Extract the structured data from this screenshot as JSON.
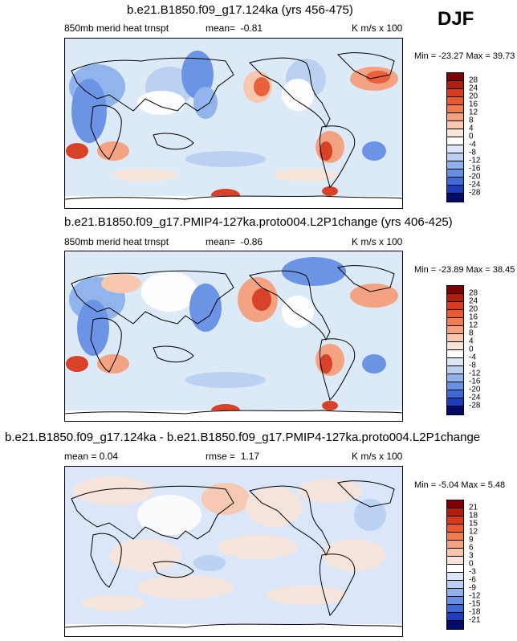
{
  "season": "DJF",
  "panels": [
    {
      "title": "b.e21.B1850.f09_g17.124ka (yrs 456-475)",
      "left_label": "850mb merid heat trnspt",
      "stat_label": "mean=",
      "stat_value": "-0.81",
      "units": "K m/s x 100",
      "minmax": "Min = -23.27 Max =  39.73",
      "levels": [
        "28",
        "24",
        "20",
        "16",
        "12",
        "8",
        "4",
        "0",
        "-4",
        "-8",
        "-12",
        "-16",
        "-20",
        "-24",
        "-28"
      ]
    },
    {
      "title": "b.e21.B1850.f09_g17.PMIP4-127ka.proto004.L2P1change (yrs 406-425)",
      "left_label": "850mb merid heat trnspt",
      "stat_label": "mean=",
      "stat_value": "-0.86",
      "units": "K m/s x 100",
      "minmax": "Min = -23.89 Max =  38.45",
      "levels": [
        "28",
        "24",
        "20",
        "16",
        "12",
        "8",
        "4",
        "0",
        "-4",
        "-8",
        "-12",
        "-16",
        "-20",
        "-24",
        "-28"
      ]
    },
    {
      "title": "b.e21.B1850.f09_g17.124ka - b.e21.B1850.f09_g17.PMIP4-127ka.proto004.L2P1change",
      "left_label": "mean =   0.04",
      "stat_label": "rmse =",
      "stat_value": "1.17",
      "units": "K m/s x 100",
      "minmax": "Min = -5.04 Max =  5.48",
      "levels": [
        "21",
        "18",
        "15",
        "12",
        "9",
        "6",
        "3",
        "0",
        "-3",
        "-6",
        "-9",
        "-12",
        "-15",
        "-18",
        "-21"
      ]
    }
  ],
  "colors": {
    "scale": [
      "#7f0000",
      "#b01f0c",
      "#d73a1e",
      "#ea5a32",
      "#f27b50",
      "#f6a07c",
      "#f9c6ab",
      "#f8e4d8",
      "#ffffff",
      "#dbe7f8",
      "#b9d0f2",
      "#8eb2ec",
      "#6590e3",
      "#3d69d9",
      "#1c3fc0",
      "#0a1f95",
      "#020a6a"
    ]
  }
}
